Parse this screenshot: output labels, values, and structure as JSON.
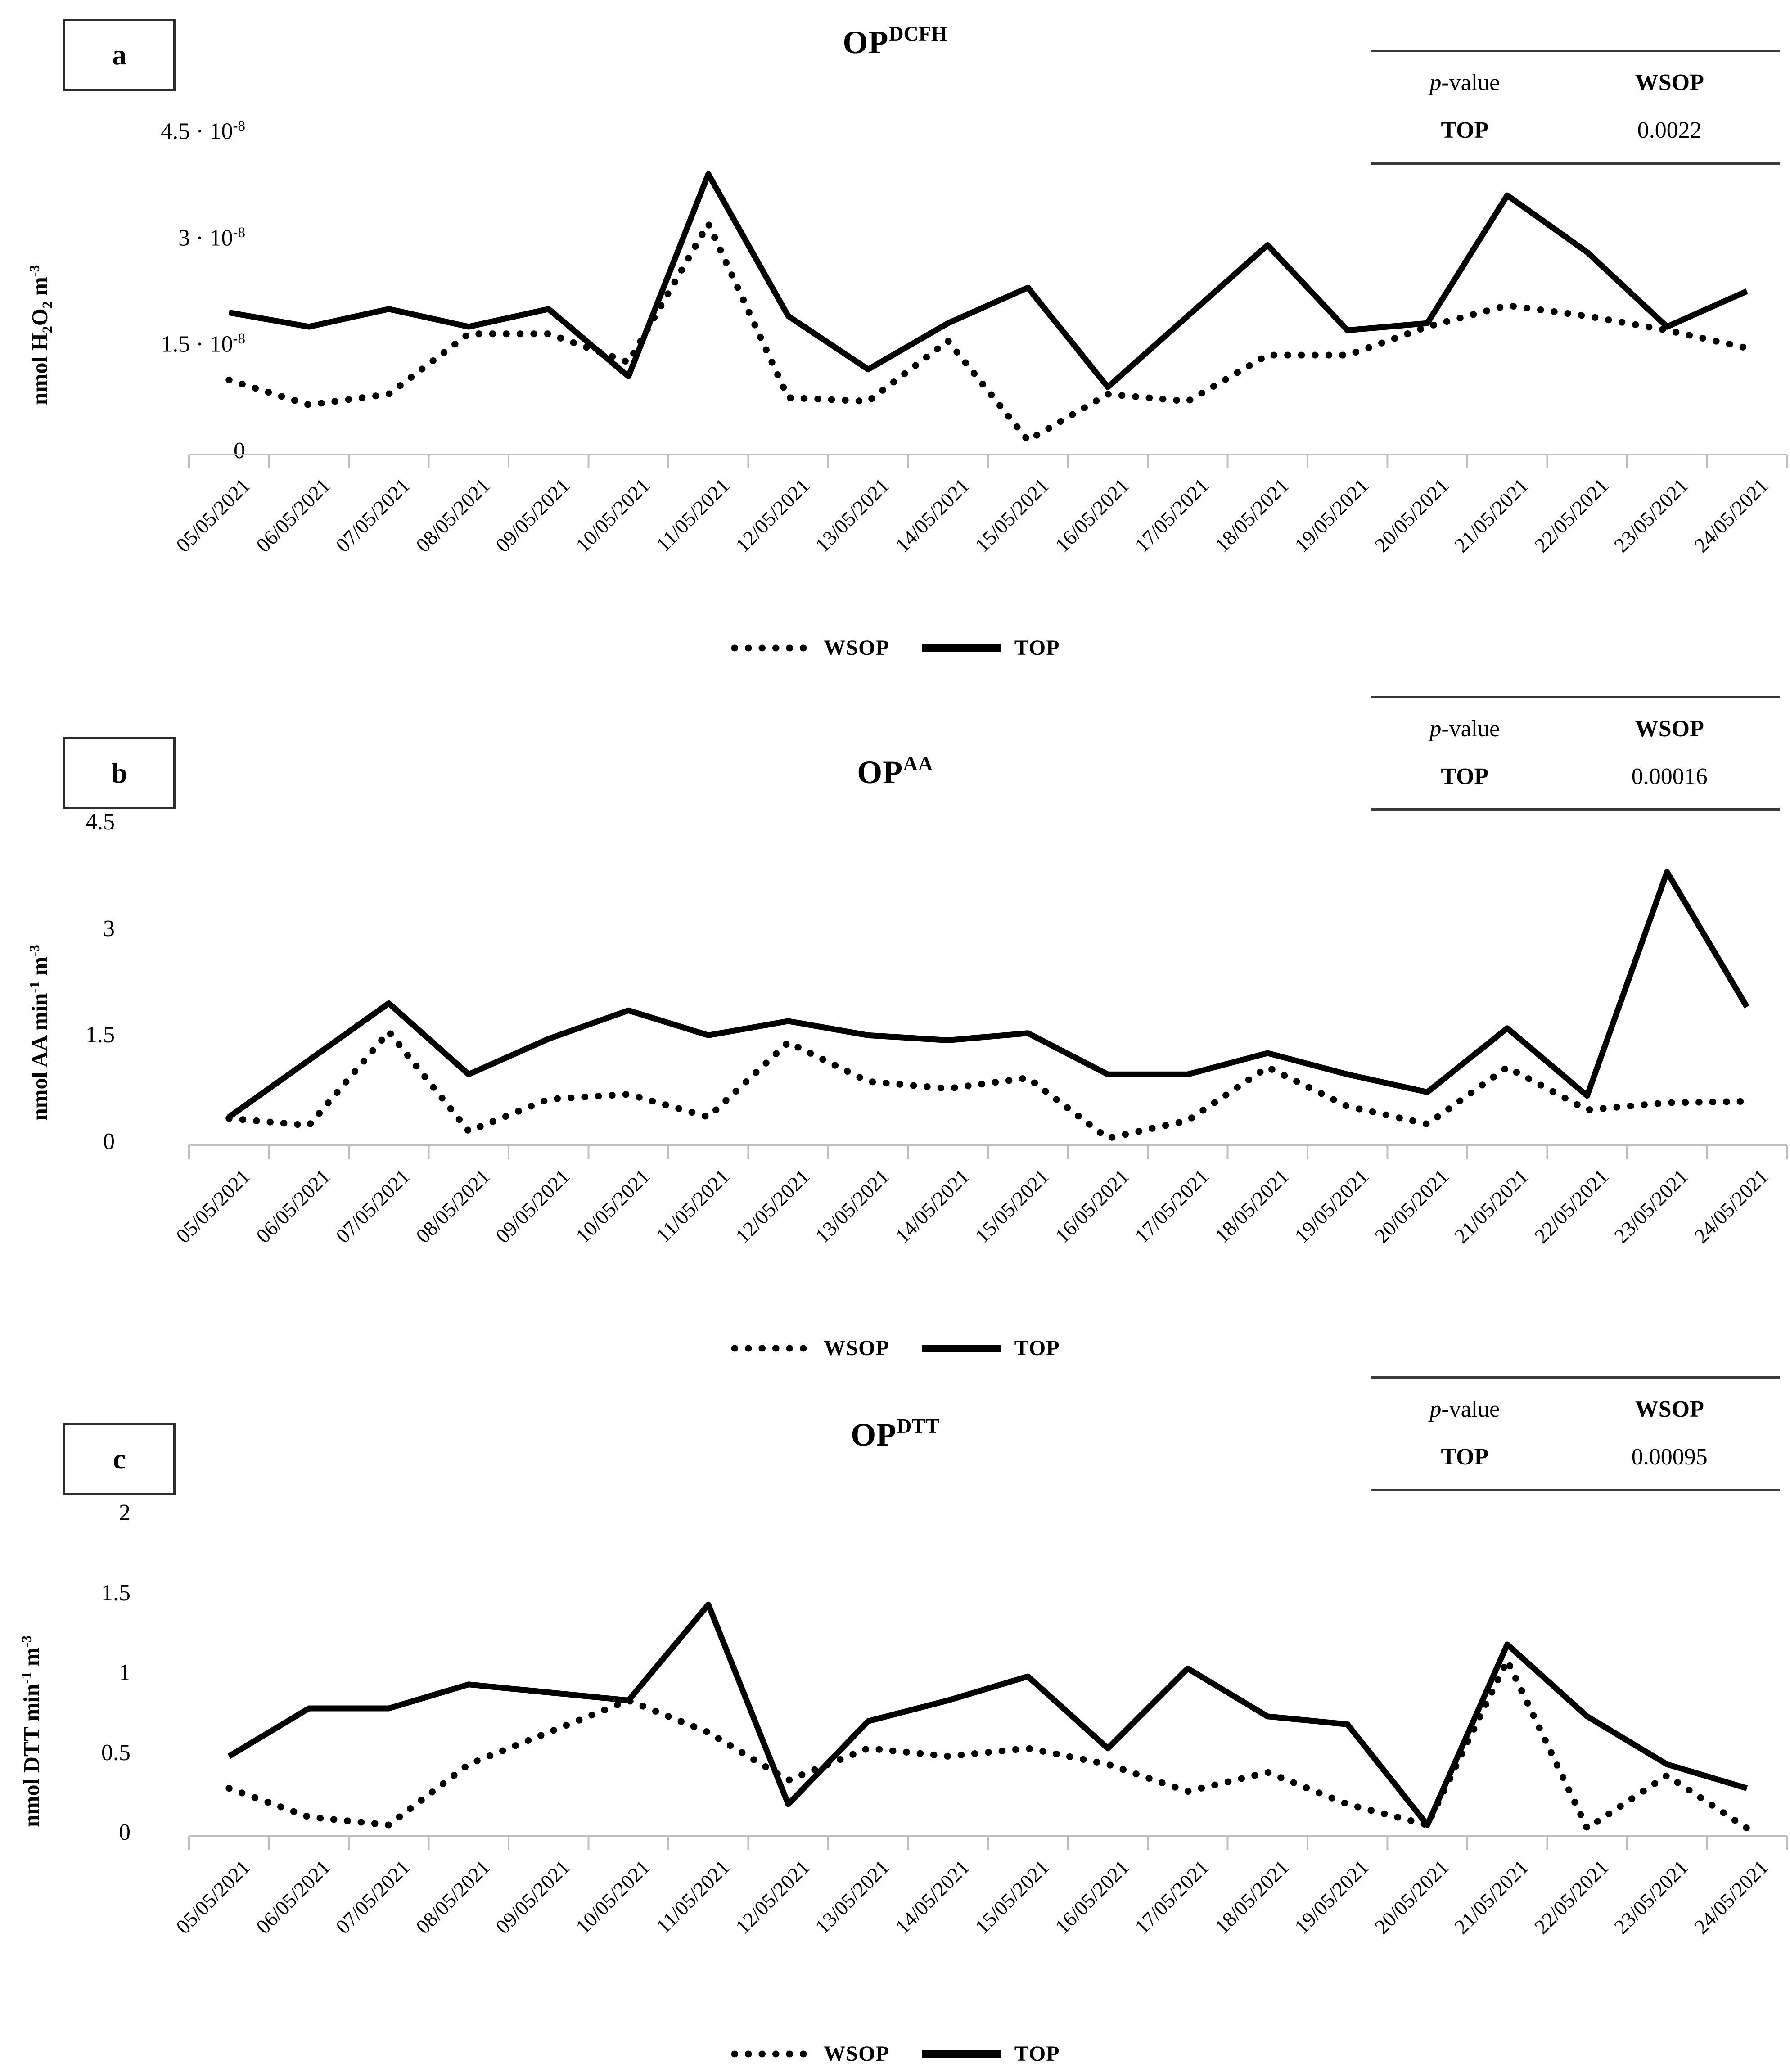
{
  "figure": {
    "background": "#ffffff",
    "text_color": "#000000",
    "axis_color": "#bfbfbf",
    "series_color": "#000000"
  },
  "categories": [
    "05/05/2021",
    "06/05/2021",
    "07/05/2021",
    "08/05/2021",
    "09/05/2021",
    "10/05/2021",
    "11/05/2021",
    "12/05/2021",
    "13/05/2021",
    "14/05/2021",
    "15/05/2021",
    "16/05/2021",
    "17/05/2021",
    "18/05/2021",
    "19/05/2021",
    "20/05/2021",
    "21/05/2021",
    "22/05/2021",
    "23/05/2021",
    "24/05/2021"
  ],
  "legend": {
    "entries": [
      {
        "name": "WSOP",
        "style": "dotted"
      },
      {
        "name": "TOP",
        "style": "solid"
      }
    ]
  },
  "chart_data": [
    {
      "type": "line",
      "panel_label": "a",
      "title_base": "OP",
      "title_sup": "DCFH",
      "ylabel": "nmol H2O2 m-3",
      "ylabel_segments": [
        {
          "t": "nmol H"
        },
        {
          "t": "2",
          "m": "sub"
        },
        {
          "t": "O"
        },
        {
          "t": "2",
          "m": "sub"
        },
        {
          "t": " m"
        },
        {
          "t": "-3",
          "m": "sup"
        }
      ],
      "y_scale_note": "values in 10^-8",
      "ylim": [
        0,
        4.5
      ],
      "y_tick_step": 1.5,
      "yticks": [
        {
          "v": 0,
          "t": "0"
        },
        {
          "v": 1.5,
          "t": "1.5 · 10",
          "s": "-8"
        },
        {
          "v": 3,
          "t": "3 · 10",
          "s": "-8"
        },
        {
          "v": 4.5,
          "t": "4.5 · 10",
          "s": "-8"
        }
      ],
      "grid": false,
      "legend_position": "bottom",
      "series": [
        {
          "name": "WSOP",
          "style": "dotted",
          "values": [
            1.05,
            0.7,
            0.85,
            1.7,
            1.7,
            1.3,
            3.25,
            0.8,
            0.75,
            1.6,
            0.2,
            0.85,
            0.75,
            1.4,
            1.4,
            1.8,
            2.1,
            1.95,
            1.75,
            1.5
          ]
        },
        {
          "name": "TOP",
          "style": "solid",
          "values": [
            2.0,
            1.8,
            2.05,
            1.8,
            2.05,
            1.1,
            3.95,
            1.95,
            1.2,
            1.85,
            2.35,
            0.95,
            1.95,
            2.95,
            1.75,
            1.85,
            3.65,
            2.85,
            1.8,
            2.3
          ]
        }
      ],
      "p_table": {
        "p": "p",
        "value_word": "-value",
        "col": "WSOP",
        "row": "TOP",
        "val": "0.0022"
      }
    },
    {
      "type": "line",
      "panel_label": "b",
      "title_base": "OP",
      "title_sup": "AA",
      "ylabel": "nmol AA min-1 m-3",
      "ylabel_segments": [
        {
          "t": "nmol AA min"
        },
        {
          "t": "-1",
          "m": "sup"
        },
        {
          "t": " m"
        },
        {
          "t": "-3",
          "m": "sup"
        }
      ],
      "ylim": [
        0,
        4.5
      ],
      "y_tick_step": 1.5,
      "yticks": [
        {
          "v": 0,
          "t": "0"
        },
        {
          "v": 1.5,
          "t": "1.5"
        },
        {
          "v": 3,
          "t": "3"
        },
        {
          "v": 4.5,
          "t": "4.5"
        }
      ],
      "grid": false,
      "legend_position": "bottom",
      "series": [
        {
          "name": "WSOP",
          "style": "dotted",
          "values": [
            0.38,
            0.28,
            1.6,
            0.2,
            0.65,
            0.72,
            0.4,
            1.45,
            0.9,
            0.8,
            0.95,
            0.1,
            0.35,
            1.1,
            0.55,
            0.3,
            1.1,
            0.5,
            0.6,
            0.62
          ]
        },
        {
          "name": "TOP",
          "style": "solid",
          "values": [
            0.4,
            1.2,
            2.0,
            1.0,
            1.5,
            1.9,
            1.55,
            1.75,
            1.55,
            1.48,
            1.58,
            1.0,
            1.0,
            1.3,
            1.0,
            0.75,
            1.65,
            0.7,
            3.85,
            1.95
          ]
        }
      ],
      "p_table": {
        "p": "p",
        "value_word": "-value",
        "col": "WSOP",
        "row": "TOP",
        "val": "0.00016"
      }
    },
    {
      "type": "line",
      "panel_label": "c",
      "title_base": "OP",
      "title_sup": "DTT",
      "ylabel": "nmol DTT min-1 m-3",
      "ylabel_segments": [
        {
          "t": "nmol DTT min"
        },
        {
          "t": "-1",
          "m": "sup"
        },
        {
          "t": " m"
        },
        {
          "t": "-3",
          "m": "sup"
        }
      ],
      "ylim": [
        0,
        2
      ],
      "y_tick_step": 0.5,
      "yticks": [
        {
          "v": 0,
          "t": "0"
        },
        {
          "v": 0.5,
          "t": "0.5"
        },
        {
          "v": 1,
          "t": "1"
        },
        {
          "v": 1.5,
          "t": "1.5"
        },
        {
          "v": 2,
          "t": "2"
        }
      ],
      "grid": false,
      "legend_position": "bottom",
      "series": [
        {
          "name": "WSOP",
          "style": "dotted",
          "values": [
            0.3,
            0.12,
            0.07,
            0.45,
            0.65,
            0.85,
            0.65,
            0.35,
            0.55,
            0.5,
            0.55,
            0.45,
            0.28,
            0.4,
            0.2,
            0.07,
            1.1,
            0.05,
            0.38,
            0.05
          ]
        },
        {
          "name": "TOP",
          "style": "solid",
          "values": [
            0.5,
            0.8,
            0.8,
            0.95,
            0.9,
            0.85,
            1.45,
            0.2,
            0.72,
            0.85,
            1.0,
            0.55,
            1.05,
            0.75,
            0.7,
            0.07,
            1.2,
            0.75,
            0.45,
            0.3
          ]
        }
      ],
      "p_table": {
        "p": "p",
        "value_word": "-value",
        "col": "WSOP",
        "row": "TOP",
        "val": "0.00095"
      }
    }
  ]
}
